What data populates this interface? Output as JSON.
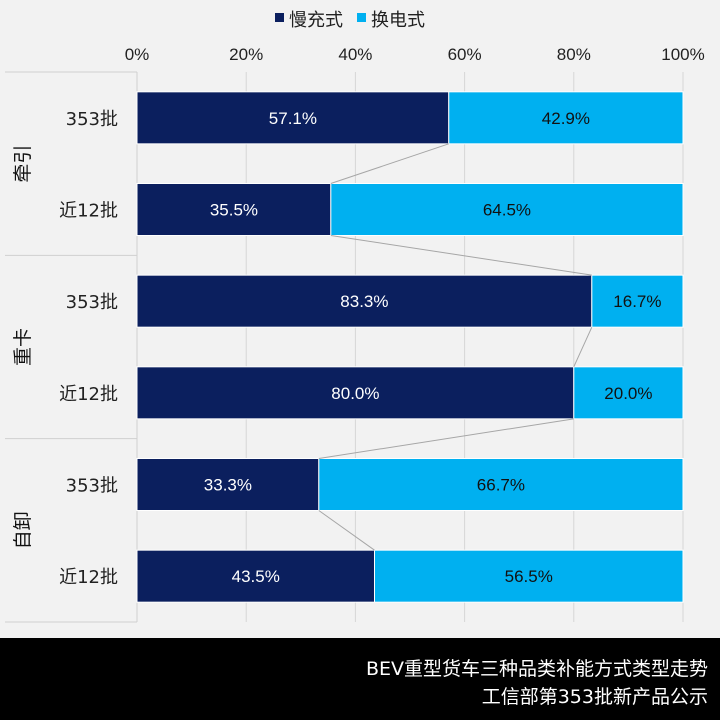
{
  "chart_data": {
    "type": "bar",
    "stacked": "percent",
    "orientation": "horizontal",
    "legend": [
      {
        "name": "慢充式",
        "color": "#0b1f5e"
      },
      {
        "name": "换电式",
        "color": "#00b0f0"
      }
    ],
    "legend_position": "top",
    "x_ticks": [
      "0%",
      "20%",
      "40%",
      "60%",
      "80%",
      "100%"
    ],
    "xlim": [
      0,
      100
    ],
    "groups": [
      {
        "name": "牵引",
        "rows": [
          {
            "label": "353批",
            "values": [
              57.1,
              42.9
            ],
            "labels": [
              "57.1%",
              "42.9%"
            ]
          },
          {
            "label": "近12批",
            "values": [
              35.5,
              64.5
            ],
            "labels": [
              "35.5%",
              "64.5%"
            ]
          }
        ]
      },
      {
        "name": "重卡",
        "rows": [
          {
            "label": "353批",
            "values": [
              83.3,
              16.7
            ],
            "labels": [
              "83.3%",
              "16.7%"
            ]
          },
          {
            "label": "近12批",
            "values": [
              80.0,
              20.0
            ],
            "labels": [
              "80.0%",
              "20.0%"
            ]
          }
        ]
      },
      {
        "name": "自卸",
        "rows": [
          {
            "label": "353批",
            "values": [
              33.3,
              66.7
            ],
            "labels": [
              "33.3%",
              "66.7%"
            ]
          },
          {
            "label": "近12批",
            "values": [
              43.5,
              56.5
            ],
            "labels": [
              "43.5%",
              "56.5%"
            ]
          }
        ]
      }
    ],
    "grid": true
  },
  "footer": {
    "line1": "BEV重型货车三种品类补能方式类型走势",
    "line2": "工信部第353批新产品公示"
  }
}
